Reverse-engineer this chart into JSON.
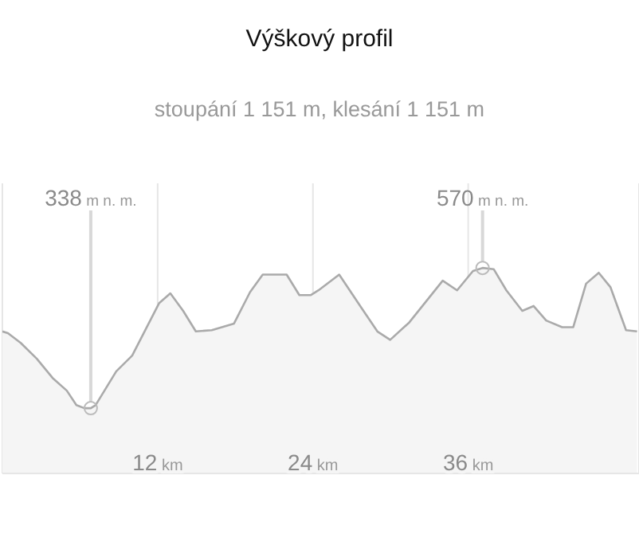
{
  "chart_data": {
    "type": "area",
    "title": "Výškový profil",
    "subtitle": "stoupání 1 151 m, klesání 1 151 m",
    "x": [
      0,
      0.43,
      1.42,
      2.65,
      3.88,
      4.98,
      5.72,
      6.34,
      6.83,
      7.2,
      8.8,
      10.03,
      12.12,
      12.98,
      13.97,
      14.95,
      16.18,
      17.9,
      19.14,
      20.12,
      21.97,
      22.95,
      23.82,
      24.43,
      26.03,
      27.75,
      28.98,
      29.97,
      31.45,
      34.03,
      35.14,
      36.37,
      37.11,
      37.97,
      38.95,
      40.18,
      41.05,
      42.03,
      43.26,
      44.12,
      45.11,
      46.09,
      47.0,
      48.2,
      49.05
    ],
    "series": [
      {
        "color": "#aaaaaa",
        "values": [
          465,
          462,
          446,
          420,
          388,
          367,
          343,
          338,
          338,
          343,
          399,
          425,
          512,
          528,
          499,
          465,
          467,
          478,
          530,
          559,
          559,
          525,
          525,
          533,
          559,
          504,
          465,
          451,
          480,
          549,
          533,
          565,
          570,
          568,
          533,
          499,
          507,
          483,
          472,
          472,
          544,
          562,
          538,
          467,
          465
        ],
        "value_labels": [
          null,
          null,
          null,
          null,
          null,
          null,
          null,
          null,
          "338 m n. m.",
          null,
          null,
          null,
          null,
          null,
          null,
          null,
          null,
          null,
          null,
          null,
          null,
          null,
          null,
          null,
          null,
          null,
          null,
          null,
          null,
          null,
          null,
          null,
          "570 m n. m.",
          null,
          null,
          null,
          null,
          null,
          null,
          null,
          null,
          null,
          null,
          null,
          null
        ]
      }
    ],
    "xlim": [
      0,
      49.2
    ],
    "xticks": [
      {
        "value": 12,
        "label": "12 km"
      },
      {
        "value": 24,
        "label": "24 km"
      },
      {
        "value": 36,
        "label": "36 km"
      }
    ],
    "ylim": [
      230,
      710
    ],
    "tick_labels": "x",
    "grid": "x",
    "legend": false,
    "marker": "none"
  }
}
